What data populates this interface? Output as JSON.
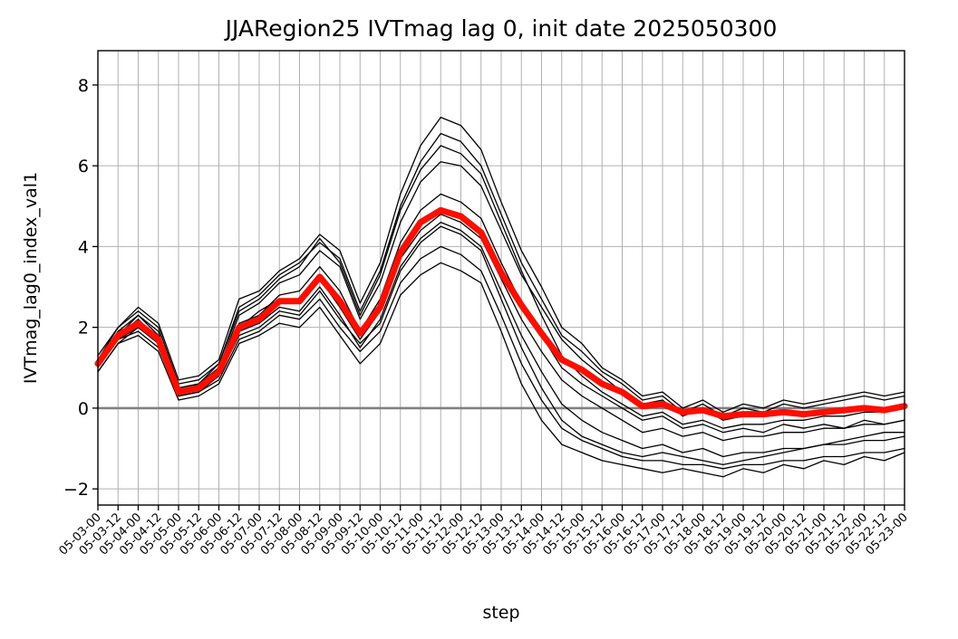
{
  "chart_data": {
    "type": "line",
    "title": "JJARegion25 IVTmag lag 0, init date 2025050300",
    "xlabel": "step",
    "ylabel": "IVTmag_lag0_index_val1",
    "ylim": [
      -2.4,
      8.85
    ],
    "yticks": [
      -2,
      0,
      2,
      4,
      6,
      8
    ],
    "ytick_labels": [
      "−2",
      "0",
      "2",
      "4",
      "6",
      "8"
    ],
    "categories": [
      "05-03-00",
      "05-03-12",
      "05-04-00",
      "05-04-12",
      "05-05-00",
      "05-05-12",
      "05-06-00",
      "05-06-12",
      "05-07-00",
      "05-07-12",
      "05-08-00",
      "05-08-12",
      "05-09-00",
      "05-09-12",
      "05-10-00",
      "05-10-12",
      "05-11-00",
      "05-11-12",
      "05-12-00",
      "05-12-12",
      "05-13-00",
      "05-13-12",
      "05-14-00",
      "05-14-12",
      "05-15-00",
      "05-15-12",
      "05-16-00",
      "05-16-12",
      "05-17-00",
      "05-17-12",
      "05-18-00",
      "05-18-12",
      "05-19-00",
      "05-19-12",
      "05-20-00",
      "05-20-12",
      "05-21-00",
      "05-21-12",
      "05-22-00",
      "05-22-12",
      "05-23-00"
    ],
    "grid": true,
    "reference_line": {
      "y": 0,
      "color": "#808080"
    },
    "members_color": "#000000",
    "mean_color": "#ff0d00",
    "mean": [
      1.1,
      1.8,
      2.1,
      1.7,
      0.4,
      0.5,
      0.9,
      2.0,
      2.2,
      2.65,
      2.65,
      3.25,
      2.65,
      1.85,
      2.5,
      3.85,
      4.6,
      4.9,
      4.75,
      4.35,
      3.35,
      2.55,
      1.85,
      1.2,
      0.95,
      0.6,
      0.4,
      0.05,
      0.1,
      -0.1,
      -0.05,
      -0.2,
      -0.15,
      -0.15,
      -0.1,
      -0.15,
      -0.1,
      -0.05,
      0.0,
      -0.05,
      0.05
    ],
    "members": [
      [
        1.2,
        1.9,
        2.3,
        1.8,
        0.5,
        0.6,
        1.0,
        2.3,
        2.6,
        3.1,
        3.3,
        3.9,
        3.5,
        2.2,
        3.1,
        4.6,
        5.6,
        6.1,
        6.0,
        5.5,
        4.4,
        3.3,
        2.5,
        1.7,
        1.2,
        0.8,
        0.4,
        0.1,
        0.2,
        -0.2,
        0.0,
        -0.3,
        -0.2,
        -0.2,
        -0.1,
        -0.2,
        -0.1,
        -0.1,
        0.0,
        -0.1,
        0.0
      ],
      [
        1.0,
        1.7,
        2.0,
        1.6,
        0.3,
        0.4,
        0.8,
        1.8,
        2.0,
        2.4,
        2.3,
        2.9,
        2.2,
        1.6,
        2.1,
        3.4,
        4.1,
        4.5,
        4.3,
        3.9,
        2.7,
        1.5,
        0.5,
        -0.3,
        -0.7,
        -0.9,
        -1.1,
        -1.2,
        -1.1,
        -1.2,
        -1.3,
        -1.4,
        -1.3,
        -1.2,
        -1.1,
        -1.0,
        -0.9,
        -0.8,
        -0.7,
        -0.6,
        -0.6
      ],
      [
        1.3,
        2.0,
        2.5,
        2.1,
        0.7,
        0.8,
        1.2,
        2.7,
        2.9,
        3.4,
        3.7,
        4.3,
        3.9,
        2.6,
        3.6,
        5.3,
        6.5,
        7.2,
        7.0,
        6.4,
        5.1,
        3.9,
        3.0,
        2.0,
        1.6,
        1.0,
        0.7,
        0.3,
        0.4,
        0.0,
        0.2,
        -0.1,
        0.1,
        0.0,
        0.2,
        0.1,
        0.2,
        0.3,
        0.4,
        0.3,
        0.4
      ],
      [
        0.9,
        1.6,
        1.8,
        1.4,
        0.2,
        0.3,
        0.6,
        1.6,
        1.8,
        2.1,
        2.0,
        2.5,
        1.8,
        1.1,
        1.6,
        2.8,
        3.3,
        3.6,
        3.4,
        3.1,
        1.9,
        0.6,
        -0.3,
        -0.9,
        -1.1,
        -1.3,
        -1.4,
        -1.5,
        -1.6,
        -1.5,
        -1.6,
        -1.7,
        -1.5,
        -1.6,
        -1.4,
        -1.5,
        -1.3,
        -1.4,
        -1.2,
        -1.3,
        -1.1
      ],
      [
        1.1,
        1.8,
        2.2,
        1.7,
        0.4,
        0.5,
        0.9,
        2.1,
        2.3,
        2.8,
        2.9,
        3.5,
        2.9,
        1.9,
        2.7,
        4.1,
        4.9,
        5.3,
        5.1,
        4.7,
        3.6,
        2.6,
        1.8,
        1.0,
        0.6,
        0.3,
        0.0,
        -0.3,
        -0.2,
        -0.5,
        -0.4,
        -0.6,
        -0.5,
        -0.6,
        -0.4,
        -0.5,
        -0.4,
        -0.5,
        -0.3,
        -0.4,
        -0.3
      ],
      [
        1.2,
        1.9,
        2.1,
        1.7,
        0.5,
        0.6,
        1.0,
        2.0,
        2.4,
        2.7,
        2.6,
        3.2,
        2.5,
        1.7,
        2.4,
        3.7,
        4.4,
        4.8,
        4.6,
        4.2,
        3.2,
        2.2,
        1.4,
        0.7,
        0.3,
        0.0,
        -0.3,
        -0.6,
        -0.5,
        -0.7,
        -0.6,
        -0.8,
        -0.7,
        -0.7,
        -0.6,
        -0.6,
        -0.5,
        -0.5,
        -0.4,
        -0.4,
        -0.3
      ],
      [
        1.0,
        1.8,
        2.3,
        1.9,
        0.4,
        0.6,
        1.1,
        2.4,
        2.7,
        3.2,
        3.5,
        4.2,
        3.6,
        2.3,
        3.3,
        4.9,
        5.9,
        6.5,
        6.3,
        5.8,
        4.6,
        3.4,
        2.3,
        1.3,
        0.8,
        0.4,
        0.1,
        -0.2,
        -0.1,
        -0.4,
        -0.3,
        -0.5,
        -0.4,
        -0.4,
        -0.3,
        -0.3,
        -0.2,
        -0.2,
        -0.1,
        -0.1,
        0.0
      ],
      [
        1.1,
        1.7,
        1.9,
        1.5,
        0.3,
        0.4,
        0.7,
        1.7,
        1.9,
        2.3,
        2.2,
        2.7,
        2.0,
        1.4,
        1.9,
        3.1,
        3.7,
        4.0,
        3.8,
        3.4,
        2.3,
        1.1,
        0.2,
        -0.5,
        -0.8,
        -1.0,
        -1.2,
        -1.3,
        -1.3,
        -1.4,
        -1.4,
        -1.5,
        -1.4,
        -1.4,
        -1.3,
        -1.3,
        -1.2,
        -1.2,
        -1.1,
        -1.1,
        -1.0
      ],
      [
        1.2,
        2.0,
        2.4,
        2.0,
        0.6,
        0.7,
        1.1,
        2.5,
        2.8,
        3.3,
        3.6,
        4.1,
        3.7,
        2.4,
        3.4,
        5.0,
        6.1,
        6.8,
        6.6,
        6.0,
        4.8,
        3.6,
        2.7,
        1.8,
        1.4,
        0.9,
        0.6,
        0.2,
        0.3,
        -0.1,
        0.1,
        -0.2,
        0.0,
        -0.1,
        0.1,
        0.0,
        0.1,
        0.2,
        0.3,
        0.2,
        0.3
      ],
      [
        0.9,
        1.6,
        2.0,
        1.6,
        0.3,
        0.4,
        0.8,
        1.9,
        2.1,
        2.5,
        2.4,
        3.0,
        2.3,
        1.5,
        2.2,
        3.5,
        4.2,
        4.6,
        4.4,
        4.0,
        2.9,
        1.8,
        0.9,
        0.1,
        -0.3,
        -0.6,
        -0.8,
        -1.0,
        -0.9,
        -1.1,
        -1.0,
        -1.2,
        -1.1,
        -1.1,
        -1.0,
        -1.0,
        -0.9,
        -0.9,
        -0.8,
        -0.8,
        -0.7
      ]
    ]
  }
}
